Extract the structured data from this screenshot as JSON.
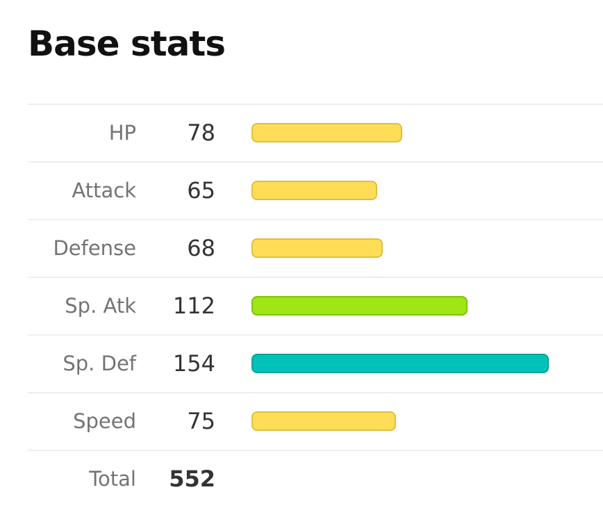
{
  "title": "Base stats",
  "bar_max": 180,
  "stats": [
    {
      "label": "HP",
      "value": 78,
      "color": "#FFDD57",
      "border": "#E0BF3A"
    },
    {
      "label": "Attack",
      "value": 65,
      "color": "#FFDD57",
      "border": "#E0BF3A"
    },
    {
      "label": "Defense",
      "value": 68,
      "color": "#FFDD57",
      "border": "#E0BF3A"
    },
    {
      "label": "Sp. Atk",
      "value": 112,
      "color": "#A0E515",
      "border": "#82C00A"
    },
    {
      "label": "Sp. Def",
      "value": 154,
      "color": "#00C2B8",
      "border": "#00A39A"
    },
    {
      "label": "Speed",
      "value": 75,
      "color": "#FFDD57",
      "border": "#E0BF3A"
    }
  ],
  "total": {
    "label": "Total",
    "value": 552
  }
}
